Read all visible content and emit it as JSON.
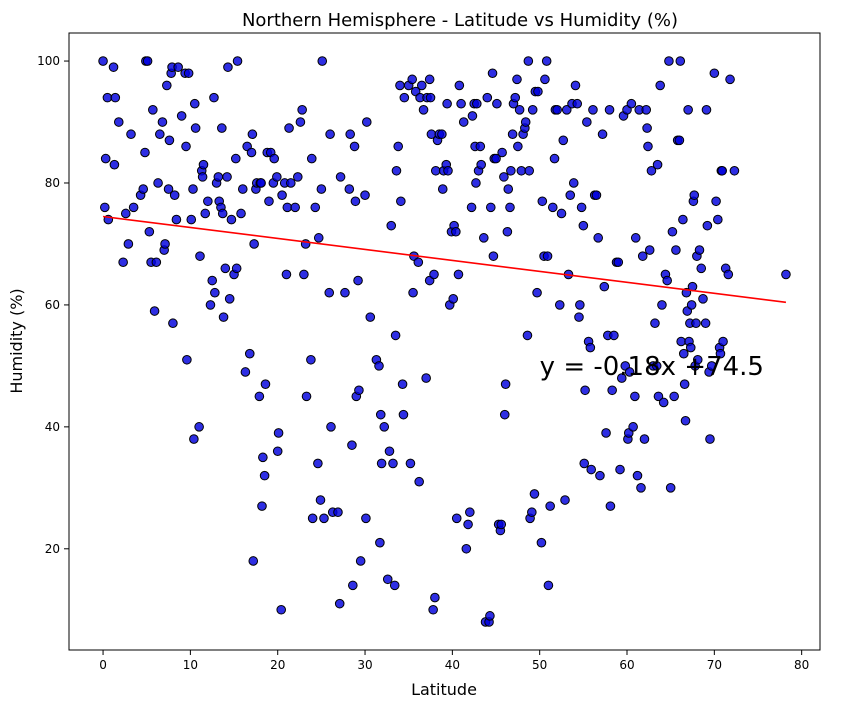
{
  "chart_data": {
    "type": "scatter",
    "title": "Northern Hemisphere - Latitude vs Humidity (%)",
    "xlabel": "Latitude",
    "ylabel": "Humidity (%)",
    "xlim": [
      -3.9,
      82.1
    ],
    "ylim": [
      3.4,
      104.6
    ],
    "xticks": [
      0,
      10,
      20,
      30,
      40,
      50,
      60,
      70,
      80
    ],
    "yticks": [
      20,
      40,
      60,
      80,
      100
    ],
    "grid": false,
    "legend": "none",
    "colors": {
      "point_fill": "#0000dd",
      "point_edge": "#000000",
      "regression_line": "#ff0000"
    },
    "regression": {
      "slope": -0.18,
      "intercept": 74.5,
      "x_range": [
        0,
        78.2
      ],
      "equation": "y = -0.18x +74.5",
      "label_position": [
        50,
        50
      ]
    },
    "points": [
      [
        0,
        100
      ],
      [
        0.2,
        76
      ],
      [
        0.3,
        84
      ],
      [
        0.5,
        94
      ],
      [
        0.6,
        74
      ],
      [
        1.2,
        99
      ],
      [
        1.3,
        83
      ],
      [
        1.4,
        94
      ],
      [
        1.8,
        90
      ],
      [
        2.3,
        67
      ],
      [
        2.6,
        75
      ],
      [
        2.9,
        70
      ],
      [
        3.2,
        88
      ],
      [
        3.5,
        76
      ],
      [
        4.3,
        78
      ],
      [
        4.6,
        79
      ],
      [
        4.8,
        85
      ],
      [
        4.9,
        100
      ],
      [
        5.1,
        100
      ],
      [
        5.3,
        72
      ],
      [
        5.5,
        67
      ],
      [
        5.7,
        92
      ],
      [
        5.9,
        59
      ],
      [
        6.1,
        67
      ],
      [
        6.3,
        80
      ],
      [
        6.5,
        88
      ],
      [
        6.8,
        90
      ],
      [
        7.0,
        69
      ],
      [
        7.1,
        70
      ],
      [
        7.3,
        96
      ],
      [
        7.5,
        79
      ],
      [
        7.6,
        87
      ],
      [
        7.8,
        98
      ],
      [
        7.9,
        99
      ],
      [
        8.0,
        57
      ],
      [
        8.2,
        78
      ],
      [
        8.4,
        74
      ],
      [
        8.6,
        99
      ],
      [
        9.0,
        91
      ],
      [
        9.4,
        98
      ],
      [
        9.5,
        86
      ],
      [
        9.6,
        51
      ],
      [
        9.8,
        98
      ],
      [
        10.1,
        74
      ],
      [
        10.3,
        79
      ],
      [
        10.4,
        38
      ],
      [
        10.5,
        93
      ],
      [
        10.6,
        89
      ],
      [
        11.0,
        40
      ],
      [
        11.1,
        68
      ],
      [
        11.3,
        82
      ],
      [
        11.4,
        81
      ],
      [
        11.5,
        83
      ],
      [
        11.7,
        75
      ],
      [
        12.0,
        77
      ],
      [
        12.3,
        60
      ],
      [
        12.5,
        64
      ],
      [
        12.7,
        94
      ],
      [
        12.8,
        62
      ],
      [
        13.0,
        80
      ],
      [
        13.2,
        81
      ],
      [
        13.3,
        77
      ],
      [
        13.5,
        76
      ],
      [
        13.6,
        89
      ],
      [
        13.7,
        75
      ],
      [
        13.8,
        58
      ],
      [
        14.0,
        66
      ],
      [
        14.2,
        81
      ],
      [
        14.3,
        99
      ],
      [
        14.5,
        61
      ],
      [
        14.7,
        74
      ],
      [
        15.0,
        65
      ],
      [
        15.2,
        84
      ],
      [
        15.3,
        66
      ],
      [
        15.4,
        100
      ],
      [
        15.8,
        75
      ],
      [
        16.0,
        79
      ],
      [
        16.3,
        49
      ],
      [
        16.5,
        86
      ],
      [
        16.8,
        52
      ],
      [
        17.0,
        85
      ],
      [
        17.1,
        88
      ],
      [
        17.2,
        18
      ],
      [
        17.3,
        70
      ],
      [
        17.5,
        79
      ],
      [
        17.6,
        80
      ],
      [
        17.9,
        45
      ],
      [
        18.0,
        80
      ],
      [
        18.1,
        80
      ],
      [
        18.2,
        27
      ],
      [
        18.3,
        35
      ],
      [
        18.5,
        32
      ],
      [
        18.6,
        47
      ],
      [
        18.8,
        85
      ],
      [
        19.0,
        77
      ],
      [
        19.2,
        85
      ],
      [
        19.5,
        80
      ],
      [
        19.6,
        84
      ],
      [
        19.9,
        81
      ],
      [
        20.0,
        36
      ],
      [
        20.1,
        39
      ],
      [
        20.4,
        10
      ],
      [
        20.5,
        78
      ],
      [
        20.8,
        80
      ],
      [
        21.0,
        65
      ],
      [
        21.1,
        76
      ],
      [
        21.3,
        89
      ],
      [
        21.5,
        80
      ],
      [
        22.0,
        76
      ],
      [
        22.3,
        81
      ],
      [
        22.6,
        90
      ],
      [
        22.8,
        92
      ],
      [
        23.0,
        65
      ],
      [
        23.2,
        70
      ],
      [
        23.3,
        45
      ],
      [
        23.8,
        51
      ],
      [
        23.9,
        84
      ],
      [
        24.0,
        25
      ],
      [
        24.3,
        76
      ],
      [
        24.6,
        34
      ],
      [
        24.7,
        71
      ],
      [
        24.9,
        28
      ],
      [
        25.0,
        79
      ],
      [
        25.1,
        100
      ],
      [
        25.3,
        25
      ],
      [
        25.9,
        62
      ],
      [
        26.0,
        88
      ],
      [
        26.1,
        40
      ],
      [
        26.3,
        26
      ],
      [
        26.9,
        26
      ],
      [
        27.1,
        11
      ],
      [
        27.2,
        81
      ],
      [
        27.7,
        62
      ],
      [
        28.2,
        79
      ],
      [
        28.3,
        88
      ],
      [
        28.5,
        37
      ],
      [
        28.6,
        14
      ],
      [
        28.8,
        86
      ],
      [
        28.9,
        77
      ],
      [
        29.0,
        45
      ],
      [
        29.2,
        64
      ],
      [
        29.3,
        46
      ],
      [
        29.5,
        18
      ],
      [
        30.0,
        78
      ],
      [
        30.1,
        25
      ],
      [
        30.2,
        90
      ],
      [
        30.6,
        58
      ],
      [
        31.3,
        51
      ],
      [
        31.6,
        50
      ],
      [
        31.7,
        21
      ],
      [
        31.8,
        42
      ],
      [
        31.9,
        34
      ],
      [
        32.2,
        40
      ],
      [
        32.6,
        15
      ],
      [
        32.8,
        36
      ],
      [
        33.0,
        73
      ],
      [
        33.2,
        34
      ],
      [
        33.4,
        14
      ],
      [
        33.5,
        55
      ],
      [
        33.6,
        82
      ],
      [
        33.8,
        86
      ],
      [
        34.0,
        96
      ],
      [
        34.1,
        77
      ],
      [
        34.3,
        47
      ],
      [
        34.4,
        42
      ],
      [
        34.5,
        94
      ],
      [
        35.0,
        96
      ],
      [
        35.2,
        34
      ],
      [
        35.4,
        97
      ],
      [
        35.5,
        62
      ],
      [
        35.6,
        68
      ],
      [
        35.8,
        95
      ],
      [
        36.1,
        67
      ],
      [
        36.2,
        31
      ],
      [
        36.3,
        94
      ],
      [
        36.5,
        96
      ],
      [
        36.7,
        92
      ],
      [
        37.0,
        48
      ],
      [
        37.1,
        94
      ],
      [
        37.4,
        97
      ],
      [
        37.4,
        64
      ],
      [
        37.5,
        94
      ],
      [
        37.6,
        88
      ],
      [
        37.8,
        10
      ],
      [
        37.9,
        65
      ],
      [
        38.0,
        12
      ],
      [
        38.1,
        82
      ],
      [
        38.3,
        87
      ],
      [
        38.5,
        88
      ],
      [
        38.8,
        88
      ],
      [
        38.9,
        79
      ],
      [
        39.0,
        82
      ],
      [
        39.3,
        83
      ],
      [
        39.4,
        93
      ],
      [
        39.5,
        82
      ],
      [
        39.7,
        60
      ],
      [
        39.9,
        72
      ],
      [
        40.1,
        61
      ],
      [
        40.2,
        73
      ],
      [
        40.4,
        72
      ],
      [
        40.5,
        25
      ],
      [
        40.7,
        65
      ],
      [
        40.8,
        96
      ],
      [
        41.0,
        93
      ],
      [
        41.3,
        90
      ],
      [
        41.6,
        20
      ],
      [
        41.8,
        24
      ],
      [
        42.0,
        26
      ],
      [
        42.2,
        76
      ],
      [
        42.3,
        91
      ],
      [
        42.5,
        93
      ],
      [
        42.6,
        86
      ],
      [
        42.7,
        80
      ],
      [
        42.8,
        93
      ],
      [
        43.0,
        82
      ],
      [
        43.2,
        86
      ],
      [
        43.3,
        83
      ],
      [
        43.6,
        71
      ],
      [
        43.8,
        8
      ],
      [
        44.0,
        94
      ],
      [
        44.2,
        8
      ],
      [
        44.3,
        9
      ],
      [
        44.4,
        76
      ],
      [
        44.6,
        98
      ],
      [
        44.7,
        68
      ],
      [
        44.8,
        84
      ],
      [
        45.0,
        84
      ],
      [
        45.1,
        93
      ],
      [
        45.3,
        24
      ],
      [
        45.5,
        23
      ],
      [
        45.6,
        24
      ],
      [
        45.7,
        85
      ],
      [
        45.9,
        81
      ],
      [
        46.0,
        42
      ],
      [
        46.1,
        47
      ],
      [
        46.3,
        72
      ],
      [
        46.4,
        79
      ],
      [
        46.6,
        76
      ],
      [
        46.7,
        82
      ],
      [
        46.9,
        88
      ],
      [
        47.0,
        93
      ],
      [
        47.2,
        94
      ],
      [
        47.4,
        97
      ],
      [
        47.5,
        86
      ],
      [
        47.7,
        92
      ],
      [
        47.9,
        82
      ],
      [
        48.1,
        88
      ],
      [
        48.3,
        89
      ],
      [
        48.4,
        90
      ],
      [
        48.6,
        55
      ],
      [
        48.7,
        100
      ],
      [
        48.8,
        82
      ],
      [
        48.9,
        25
      ],
      [
        49.1,
        26
      ],
      [
        49.2,
        92
      ],
      [
        49.4,
        29
      ],
      [
        49.5,
        95
      ],
      [
        49.7,
        62
      ],
      [
        49.8,
        95
      ],
      [
        50.2,
        21
      ],
      [
        50.3,
        77
      ],
      [
        50.5,
        68
      ],
      [
        50.6,
        97
      ],
      [
        50.8,
        100
      ],
      [
        50.9,
        68
      ],
      [
        51.0,
        14
      ],
      [
        51.2,
        27
      ],
      [
        51.5,
        76
      ],
      [
        51.7,
        84
      ],
      [
        51.8,
        92
      ],
      [
        52.0,
        92
      ],
      [
        52.3,
        60
      ],
      [
        52.5,
        75
      ],
      [
        52.7,
        87
      ],
      [
        52.9,
        28
      ],
      [
        53.1,
        92
      ],
      [
        53.3,
        65
      ],
      [
        53.5,
        78
      ],
      [
        53.7,
        93
      ],
      [
        53.9,
        80
      ],
      [
        54.1,
        96
      ],
      [
        54.3,
        93
      ],
      [
        54.5,
        58
      ],
      [
        54.6,
        60
      ],
      [
        54.8,
        76
      ],
      [
        55.0,
        73
      ],
      [
        55.1,
        34
      ],
      [
        55.2,
        46
      ],
      [
        55.4,
        90
      ],
      [
        55.6,
        54
      ],
      [
        55.8,
        53
      ],
      [
        55.9,
        33
      ],
      [
        56.1,
        92
      ],
      [
        56.3,
        78
      ],
      [
        56.5,
        78
      ],
      [
        56.7,
        71
      ],
      [
        56.9,
        32
      ],
      [
        57.2,
        88
      ],
      [
        57.4,
        63
      ],
      [
        57.6,
        39
      ],
      [
        57.8,
        55
      ],
      [
        58.0,
        92
      ],
      [
        58.1,
        27
      ],
      [
        58.3,
        46
      ],
      [
        58.5,
        55
      ],
      [
        58.8,
        67
      ],
      [
        59.0,
        67
      ],
      [
        59.2,
        33
      ],
      [
        59.4,
        48
      ],
      [
        59.6,
        91
      ],
      [
        59.8,
        50
      ],
      [
        60.0,
        92
      ],
      [
        60.1,
        38
      ],
      [
        60.2,
        39
      ],
      [
        60.3,
        49
      ],
      [
        60.5,
        93
      ],
      [
        60.7,
        40
      ],
      [
        60.9,
        45
      ],
      [
        61.0,
        71
      ],
      [
        61.2,
        32
      ],
      [
        61.4,
        92
      ],
      [
        61.6,
        30
      ],
      [
        61.8,
        68
      ],
      [
        62.0,
        38
      ],
      [
        62.2,
        92
      ],
      [
        62.3,
        89
      ],
      [
        62.4,
        86
      ],
      [
        62.6,
        69
      ],
      [
        62.8,
        82
      ],
      [
        63.0,
        50
      ],
      [
        63.2,
        57
      ],
      [
        63.4,
        50
      ],
      [
        63.5,
        83
      ],
      [
        63.6,
        45
      ],
      [
        63.8,
        96
      ],
      [
        64.0,
        60
      ],
      [
        64.2,
        44
      ],
      [
        64.4,
        65
      ],
      [
        64.6,
        64
      ],
      [
        64.8,
        100
      ],
      [
        65.0,
        30
      ],
      [
        65.2,
        72
      ],
      [
        65.4,
        45
      ],
      [
        65.6,
        69
      ],
      [
        65.8,
        87
      ],
      [
        66.0,
        87
      ],
      [
        66.1,
        100
      ],
      [
        66.2,
        54
      ],
      [
        66.4,
        74
      ],
      [
        66.5,
        52
      ],
      [
        66.6,
        47
      ],
      [
        66.7,
        41
      ],
      [
        66.8,
        62
      ],
      [
        66.9,
        59
      ],
      [
        67.0,
        92
      ],
      [
        67.1,
        54
      ],
      [
        67.2,
        57
      ],
      [
        67.3,
        53
      ],
      [
        67.4,
        60
      ],
      [
        67.5,
        63
      ],
      [
        67.6,
        77
      ],
      [
        67.7,
        78
      ],
      [
        67.8,
        50
      ],
      [
        67.9,
        57
      ],
      [
        68.0,
        68
      ],
      [
        68.1,
        51
      ],
      [
        68.3,
        69
      ],
      [
        68.5,
        66
      ],
      [
        68.7,
        61
      ],
      [
        69.0,
        57
      ],
      [
        69.1,
        92
      ],
      [
        69.2,
        73
      ],
      [
        69.4,
        49
      ],
      [
        69.5,
        38
      ],
      [
        69.7,
        50
      ],
      [
        70.0,
        98
      ],
      [
        70.2,
        77
      ],
      [
        70.4,
        74
      ],
      [
        70.6,
        53
      ],
      [
        70.7,
        52
      ],
      [
        70.8,
        82
      ],
      [
        70.9,
        82
      ],
      [
        71.0,
        54
      ],
      [
        71.3,
        66
      ],
      [
        71.6,
        65
      ],
      [
        71.8,
        97
      ],
      [
        72.3,
        82
      ],
      [
        78.2,
        65
      ]
    ]
  }
}
